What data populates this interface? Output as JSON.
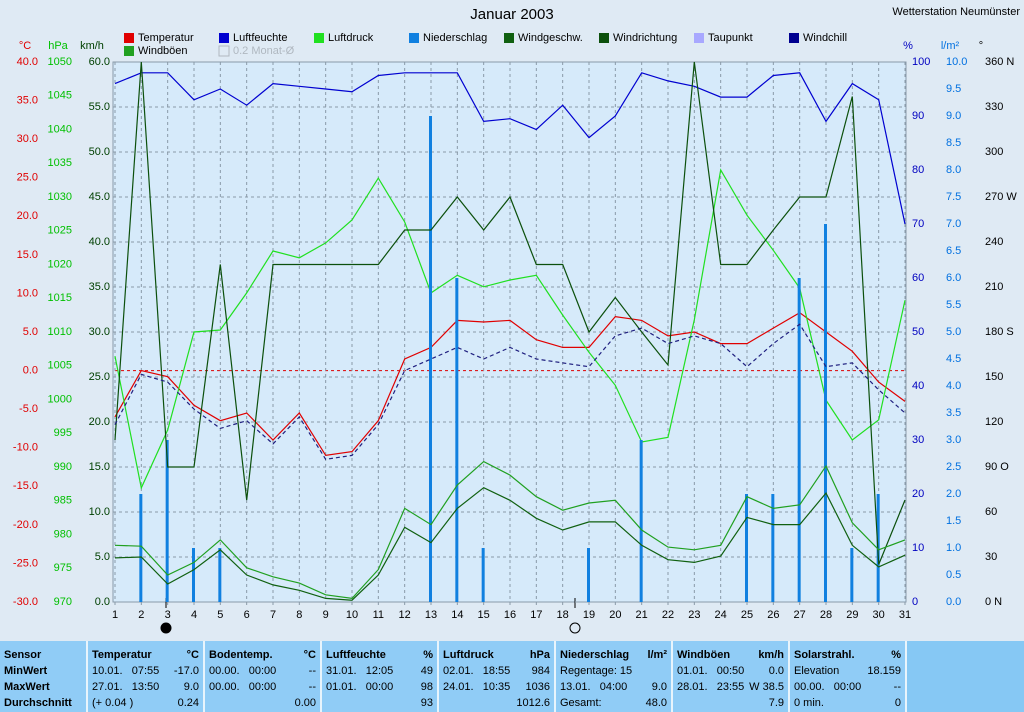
{
  "chart_data": {
    "type": "line",
    "title": "Januar 2003",
    "station": "Wetterstation Neumünster",
    "legend_note": "0.2 Monat-Ø",
    "x": [
      1,
      2,
      3,
      4,
      5,
      6,
      7,
      8,
      9,
      10,
      11,
      12,
      13,
      14,
      15,
      16,
      17,
      18,
      19,
      20,
      21,
      22,
      23,
      24,
      25,
      26,
      27,
      28,
      29,
      30,
      31
    ],
    "xlim": [
      1,
      31
    ],
    "xticks": [
      1,
      2,
      3,
      4,
      5,
      6,
      7,
      8,
      9,
      10,
      11,
      12,
      13,
      14,
      15,
      16,
      17,
      18,
      19,
      20,
      21,
      22,
      23,
      24,
      25,
      26,
      27,
      28,
      29,
      30,
      31
    ],
    "grid": true,
    "axes": [
      {
        "id": "temp",
        "label": "°C",
        "color": "#e00000",
        "zero_line": true,
        "lim": [
          -30,
          40
        ],
        "ticks": [
          {
            "value": 40,
            "label": "40.0"
          },
          {
            "value": 35,
            "label": "35.0"
          },
          {
            "value": 30,
            "label": "30.0"
          },
          {
            "value": 25,
            "label": "25.0"
          },
          {
            "value": 20,
            "label": "20.0"
          },
          {
            "value": 15,
            "label": "15.0"
          },
          {
            "value": 10,
            "label": "10.0"
          },
          {
            "value": 5,
            "label": "5.0"
          },
          {
            "value": 0,
            "label": "0.0"
          },
          {
            "value": -5,
            "label": "-5.0"
          },
          {
            "value": -10,
            "label": "-10.0"
          },
          {
            "value": -15,
            "label": "-15.0"
          },
          {
            "value": -20,
            "label": "-20.0"
          },
          {
            "value": -25,
            "label": "-25.0"
          },
          {
            "value": -30,
            "label": "-30.0"
          }
        ]
      },
      {
        "id": "pressure",
        "label": "hPa",
        "color": "#00c000",
        "lim": [
          970,
          1050
        ],
        "ticks": [
          1050,
          1045,
          1040,
          1035,
          1030,
          1025,
          1020,
          1015,
          1010,
          1005,
          1000,
          995,
          990,
          985,
          980,
          975,
          970
        ]
      },
      {
        "id": "wind",
        "label": "km/h",
        "color": "#004000",
        "grid": true,
        "lim": [
          0,
          60
        ],
        "ticks": [
          {
            "value": 60,
            "label": "60.0"
          },
          {
            "value": 55,
            "label": "55.0"
          },
          {
            "value": 50,
            "label": "50.0"
          },
          {
            "value": 45,
            "label": "45.0"
          },
          {
            "value": 40,
            "label": "40.0"
          },
          {
            "value": 35,
            "label": "35.0"
          },
          {
            "value": 30,
            "label": "30.0"
          },
          {
            "value": 25,
            "label": "25.0"
          },
          {
            "value": 20,
            "label": "20.0"
          },
          {
            "value": 15,
            "label": "15.0"
          },
          {
            "value": 10,
            "label": "10.0"
          },
          {
            "value": 5,
            "label": "5.0"
          },
          {
            "value": 0,
            "label": "0.0"
          }
        ]
      },
      {
        "id": "humidity",
        "label": "%",
        "color": "#0000c0",
        "lim": [
          0,
          100
        ],
        "ticks": [
          100,
          90,
          80,
          70,
          60,
          50,
          40,
          30,
          20,
          10,
          0
        ]
      },
      {
        "id": "rain",
        "label": "l/m²",
        "color": "#0070e0",
        "lim": [
          0,
          10
        ],
        "ticks": [
          {
            "value": 10,
            "label": "10.0"
          },
          {
            "value": 9.5,
            "label": "9.5"
          },
          {
            "value": 9,
            "label": "9.0"
          },
          {
            "value": 8.5,
            "label": "8.5"
          },
          {
            "value": 8,
            "label": "8.0"
          },
          {
            "value": 7.5,
            "label": "7.5"
          },
          {
            "value": 7,
            "label": "7.0"
          },
          {
            "value": 6.5,
            "label": "6.5"
          },
          {
            "value": 6,
            "label": "6.0"
          },
          {
            "value": 5.5,
            "label": "5.5"
          },
          {
            "value": 5,
            "label": "5.0"
          },
          {
            "value": 4.5,
            "label": "4.5"
          },
          {
            "value": 4,
            "label": "4.0"
          },
          {
            "value": 3.5,
            "label": "3.5"
          },
          {
            "value": 3,
            "label": "3.0"
          },
          {
            "value": 2.5,
            "label": "2.5"
          },
          {
            "value": 2,
            "label": "2.0"
          },
          {
            "value": 1.5,
            "label": "1.5"
          },
          {
            "value": 1,
            "label": "1.0"
          },
          {
            "value": 0.5,
            "label": "0.5"
          },
          {
            "value": 0,
            "label": "0.0"
          }
        ]
      },
      {
        "id": "direction",
        "label": "°",
        "color": "#000000",
        "lim": [
          0,
          360
        ],
        "ticks": [
          {
            "value": 360,
            "label": "360 N"
          },
          330,
          300,
          {
            "value": 270,
            "label": "270 W"
          },
          240,
          210,
          {
            "value": 180,
            "label": "180 S"
          },
          150,
          120,
          {
            "value": 90,
            "label": "90 O"
          },
          60,
          30,
          {
            "value": 0,
            "label": "0 N"
          }
        ]
      }
    ],
    "series": [
      {
        "name": "Temperatur",
        "color": "#e00000",
        "axis": "temp",
        "values": [
          -6.0,
          0.0,
          -0.8,
          -4.5,
          -6.5,
          -5.5,
          -9.0,
          -5.5,
          -11.0,
          -10.5,
          -6.5,
          1.5,
          3.0,
          6.5,
          6.3,
          6.5,
          4.0,
          3.0,
          3.0,
          7.0,
          6.5,
          4.5,
          5.0,
          3.5,
          3.5,
          5.5,
          7.5,
          5.0,
          2.5,
          -1.5,
          -4.0
        ]
      },
      {
        "name": "Luftfeuchte",
        "color": "#0000d0",
        "axis": "humidity",
        "values": [
          96,
          98,
          98,
          93,
          95,
          92,
          96,
          95.5,
          95,
          94.5,
          97.5,
          98,
          98,
          98,
          89,
          89.5,
          87.5,
          92,
          86,
          90,
          98,
          96.5,
          95.5,
          93.5,
          93.5,
          97.5,
          98,
          89,
          96,
          93,
          70
        ]
      },
      {
        "name": "Luftdruck",
        "color": "#20e020",
        "axis": "pressure",
        "values": [
          1006.4,
          986.9,
          995.5,
          1010.0,
          1010.3,
          1015.8,
          1022.0,
          1021.0,
          1023.2,
          1026.6,
          1032.8,
          1026.3,
          1015.8,
          1018.4,
          1016.7,
          1017.7,
          1018.4,
          1012.5,
          1007.0,
          1002.1,
          993.7,
          994.4,
          1011.8,
          1034.0,
          1027.3,
          1022.1,
          1016.5,
          999.9,
          994.0,
          997.0,
          1014.7
        ]
      },
      {
        "name": "Niederschlag",
        "color": "#1080e0",
        "axis": "rain",
        "bars": true,
        "values": [
          0,
          2.0,
          3.0,
          1.0,
          1.0,
          0,
          0,
          0,
          0,
          0,
          0,
          0,
          9.0,
          6.0,
          1.0,
          0,
          0,
          0,
          1.0,
          0,
          3.0,
          0,
          0,
          0,
          2.0,
          2.0,
          6.0,
          7.0,
          1.0,
          2.0,
          0
        ]
      },
      {
        "name": "Windgeschw.",
        "color": "#106010",
        "axis": "wind",
        "values": [
          4.9,
          5.0,
          2.0,
          3.6,
          5.8,
          3.0,
          1.9,
          1.3,
          0.4,
          0.2,
          3.0,
          8.3,
          6.6,
          10.4,
          12.7,
          11.3,
          9.3,
          8.0,
          8.9,
          8.9,
          6.3,
          4.7,
          4.4,
          5.1,
          9.4,
          8.6,
          8.6,
          12.1,
          6.3,
          3.9,
          5.2
        ]
      },
      {
        "name": "Windrichtung",
        "color": "#0c500c",
        "axis": "direction",
        "values": [
          108,
          360,
          90,
          90,
          225,
          68,
          225,
          225,
          225,
          225,
          225,
          248,
          248,
          270,
          248,
          270,
          225,
          225,
          180,
          203,
          180,
          158,
          360,
          225,
          225,
          248,
          270,
          270,
          337,
          25,
          68
        ]
      },
      {
        "name": "Taupunkt",
        "color": "#202080",
        "legend_color": "#a8a8ff",
        "axis": "temp",
        "dash": true,
        "values": [
          -7.0,
          -0.5,
          -1.5,
          -5.0,
          -7.5,
          -6.5,
          -9.5,
          -6.0,
          -11.5,
          -11.0,
          -7.0,
          0.0,
          1.5,
          3.0,
          1.5,
          3.0,
          1.5,
          1.0,
          0.5,
          4.5,
          5.5,
          3.5,
          4.5,
          3.5,
          0.5,
          3.5,
          6.0,
          0.5,
          1.0,
          -2.5,
          -5.5
        ]
      },
      {
        "name": "Windchill",
        "color": "#000090",
        "axis": "temp",
        "values": [
          null,
          null,
          null,
          null,
          null,
          null,
          null,
          null,
          null,
          null,
          null,
          null,
          null,
          null,
          null,
          null,
          null,
          null,
          null,
          null,
          null,
          null,
          null,
          null,
          null,
          null,
          null,
          null,
          null,
          null,
          null
        ]
      },
      {
        "name": "Windböen",
        "color": "#20a020",
        "axis": "wind",
        "values": [
          6.3,
          6.2,
          3.0,
          4.4,
          6.9,
          3.8,
          2.8,
          2.1,
          0.8,
          0.4,
          3.6,
          10.4,
          8.6,
          13.0,
          15.6,
          14.1,
          11.7,
          10.2,
          11.0,
          11.3,
          8.0,
          6.1,
          5.8,
          6.3,
          11.7,
          10.4,
          10.8,
          15.1,
          8.8,
          5.8,
          6.9
        ]
      }
    ]
  },
  "table": {
    "row_labels": [
      "Sensor",
      "MinWert",
      "MaxWert",
      "Durchschnitt"
    ],
    "columns": [
      {
        "title": "Temperatur",
        "unit": "°C",
        "cells": [
          {
            "left": "10.01.   07:55",
            "right": "-17.0"
          },
          {
            "left": "27.01.   13:50",
            "right": "9.0"
          },
          {
            "left": "(+ 0.04 )",
            "right": "0.24"
          }
        ]
      },
      {
        "title": "Bodentemp.",
        "unit": "°C",
        "cells": [
          {
            "left": "00.00.   00:00",
            "right": "--"
          },
          {
            "left": "00.00.   00:00",
            "right": "--"
          },
          {
            "right": "0.00"
          }
        ]
      },
      {
        "title": "Luftfeuchte",
        "unit": "%",
        "cells": [
          {
            "left": "31.01.   12:05",
            "right": "49"
          },
          {
            "left": "01.01.   00:00",
            "right": "98"
          },
          {
            "right": "93"
          }
        ]
      },
      {
        "title": "Luftdruck",
        "unit": "hPa",
        "cells": [
          {
            "left": "02.01.   18:55",
            "right": "984"
          },
          {
            "left": "24.01.   10:35",
            "right": "1036"
          },
          {
            "right": "1012.6"
          }
        ]
      },
      {
        "title": "Niederschlag",
        "unit": "l/m²",
        "cells": [
          {
            "left": "Regentage: 15"
          },
          {
            "left": "13.01.   04:00",
            "right": "9.0"
          },
          {
            "left": "Gesamt:",
            "right": "48.0"
          }
        ]
      },
      {
        "title": "Windböen",
        "unit": "km/h",
        "cells": [
          {
            "left": "01.01.   00:50",
            "right": "0.0"
          },
          {
            "left": "28.01.   23:55",
            "right": "W 38.5"
          },
          {
            "right": "7.9"
          }
        ]
      },
      {
        "title": "Solarstrahl.",
        "unit": "%",
        "cells": [
          {
            "left": "Elevation",
            "right": "18.159"
          },
          {
            "left": "00.00.   00:00",
            "right": "--"
          },
          {
            "left": "0 min.",
            "right": "0"
          }
        ]
      }
    ]
  }
}
